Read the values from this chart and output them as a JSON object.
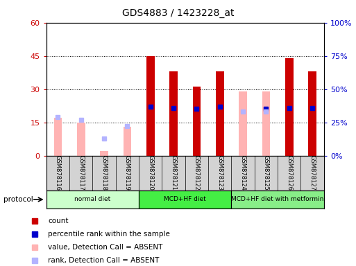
{
  "title": "GDS4883 / 1423228_at",
  "samples": [
    "GSM878116",
    "GSM878117",
    "GSM878118",
    "GSM878119",
    "GSM878120",
    "GSM878121",
    "GSM878122",
    "GSM878123",
    "GSM878124",
    "GSM878125",
    "GSM878126",
    "GSM878127"
  ],
  "count": [
    0,
    0,
    0,
    0,
    45,
    38,
    31,
    38,
    0,
    0,
    44,
    38
  ],
  "percentile_rank": [
    null,
    null,
    null,
    null,
    37,
    36,
    35,
    37,
    null,
    35,
    36,
    36
  ],
  "value_absent": [
    17,
    15,
    2,
    13,
    null,
    null,
    null,
    null,
    29,
    29,
    null,
    null
  ],
  "rank_absent": [
    29,
    27,
    13,
    22,
    null,
    null,
    null,
    null,
    33,
    33,
    null,
    null
  ],
  "count_color": "#cc0000",
  "percentile_color": "#0000cc",
  "value_absent_color": "#ffb3b3",
  "rank_absent_color": "#b3b3ff",
  "ylim_left": [
    0,
    60
  ],
  "yticks_left": [
    0,
    15,
    30,
    45,
    60
  ],
  "ytick_labels_left": [
    "0",
    "15",
    "30",
    "45",
    "60"
  ],
  "ytick_labels_right": [
    "0%",
    "25%",
    "50%",
    "75%",
    "100%"
  ],
  "protocol_groups": [
    {
      "label": "normal diet",
      "start": 0,
      "end": 3,
      "color": "#ccffcc"
    },
    {
      "label": "MCD+HF diet",
      "start": 4,
      "end": 7,
      "color": "#44ee44"
    },
    {
      "label": "MCD+HF diet with metformin",
      "start": 8,
      "end": 11,
      "color": "#88ee88"
    }
  ],
  "legend_items": [
    {
      "label": "count",
      "color": "#cc0000"
    },
    {
      "label": "percentile rank within the sample",
      "color": "#0000cc"
    },
    {
      "label": "value, Detection Call = ABSENT",
      "color": "#ffb3b3"
    },
    {
      "label": "rank, Detection Call = ABSENT",
      "color": "#b3b3ff"
    }
  ],
  "bar_width": 0.35,
  "marker_size": 5,
  "left_color": "#cc0000",
  "right_color": "#0000cc"
}
